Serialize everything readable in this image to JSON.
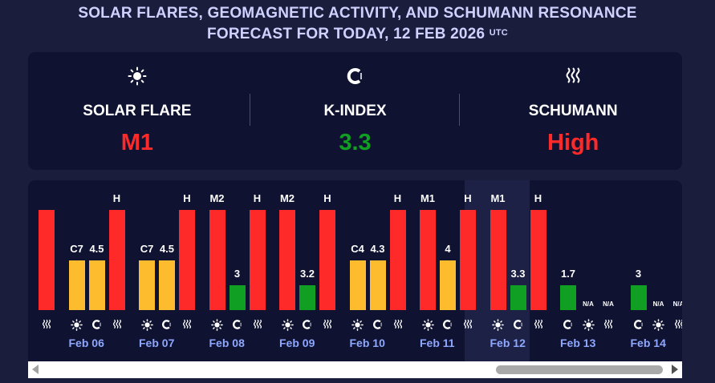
{
  "header": {
    "title_line1": "SOLAR FLARES, GEOMAGNETIC ACTIVITY, AND SCHUMANN RESONANCE",
    "title_line2": "FORECAST FOR TODAY, 12 FEB 2026",
    "timezone": "UTC"
  },
  "summary": {
    "solar": {
      "label": "SOLAR FLARE",
      "value": "M1",
      "color": "#fe2a2a",
      "icon": "sun-icon"
    },
    "kindex": {
      "label": "K-INDEX",
      "value": "3.3",
      "color": "#109e23",
      "icon": "magnet-icon"
    },
    "schumann": {
      "label": "SCHUMANN",
      "value": "High",
      "color": "#fe2a2a",
      "icon": "waves-icon"
    }
  },
  "colors": {
    "red": "#fe2a2a",
    "yellow": "#fdbb2e",
    "green": "#109e23",
    "date": "#8fa8ff"
  },
  "days": [
    {
      "date": "",
      "bars": [
        {
          "type": "schumann",
          "label": "",
          "level": 1.0,
          "color": "red"
        }
      ]
    },
    {
      "date": "Feb 06",
      "bars": [
        {
          "type": "solar",
          "label": "C7",
          "level": 0.5,
          "color": "yellow"
        },
        {
          "type": "kindex",
          "label": "4.5",
          "level": 0.5,
          "color": "yellow"
        },
        {
          "type": "schumann",
          "label": "H",
          "level": 1.0,
          "color": "red"
        }
      ]
    },
    {
      "date": "Feb 07",
      "bars": [
        {
          "type": "solar",
          "label": "C7",
          "level": 0.5,
          "color": "yellow"
        },
        {
          "type": "kindex",
          "label": "4.5",
          "level": 0.5,
          "color": "yellow"
        },
        {
          "type": "schumann",
          "label": "H",
          "level": 1.0,
          "color": "red"
        }
      ]
    },
    {
      "date": "Feb 08",
      "bars": [
        {
          "type": "solar",
          "label": "M2",
          "level": 1.0,
          "color": "red"
        },
        {
          "type": "kindex",
          "label": "3",
          "level": 0.25,
          "color": "green"
        },
        {
          "type": "schumann",
          "label": "H",
          "level": 1.0,
          "color": "red"
        }
      ]
    },
    {
      "date": "Feb 09",
      "bars": [
        {
          "type": "solar",
          "label": "M2",
          "level": 1.0,
          "color": "red"
        },
        {
          "type": "kindex",
          "label": "3.2",
          "level": 0.25,
          "color": "green"
        },
        {
          "type": "schumann",
          "label": "H",
          "level": 1.0,
          "color": "red"
        }
      ]
    },
    {
      "date": "Feb 10",
      "bars": [
        {
          "type": "solar",
          "label": "C4",
          "level": 0.5,
          "color": "yellow"
        },
        {
          "type": "kindex",
          "label": "4.3",
          "level": 0.5,
          "color": "yellow"
        },
        {
          "type": "schumann",
          "label": "H",
          "level": 1.0,
          "color": "red"
        }
      ]
    },
    {
      "date": "Feb 11",
      "bars": [
        {
          "type": "solar",
          "label": "M1",
          "level": 1.0,
          "color": "red"
        },
        {
          "type": "kindex",
          "label": "4",
          "level": 0.5,
          "color": "yellow"
        },
        {
          "type": "schumann",
          "label": "H",
          "level": 1.0,
          "color": "red"
        }
      ]
    },
    {
      "date": "Feb 12",
      "today": true,
      "bars": [
        {
          "type": "solar",
          "label": "M1",
          "level": 1.0,
          "color": "red"
        },
        {
          "type": "kindex",
          "label": "3.3",
          "level": 0.25,
          "color": "green"
        },
        {
          "type": "schumann",
          "label": "H",
          "level": 1.0,
          "color": "red"
        }
      ]
    },
    {
      "date": "Feb 13",
      "bars": [
        {
          "type": "kindex",
          "label": "1.7",
          "level": 0.25,
          "color": "green"
        },
        {
          "type": "solar",
          "label": "N/A",
          "level": 0,
          "color": "none"
        },
        {
          "type": "schumann",
          "label": "N/A",
          "level": 0,
          "color": "none"
        }
      ]
    },
    {
      "date": "Feb 14",
      "bars": [
        {
          "type": "kindex",
          "label": "3",
          "level": 0.25,
          "color": "green"
        },
        {
          "type": "solar",
          "label": "N/A",
          "level": 0,
          "color": "none"
        },
        {
          "type": "schumann",
          "label": "N/A",
          "level": 0,
          "color": "none"
        }
      ]
    }
  ],
  "scroll": {
    "position": 1.0
  }
}
